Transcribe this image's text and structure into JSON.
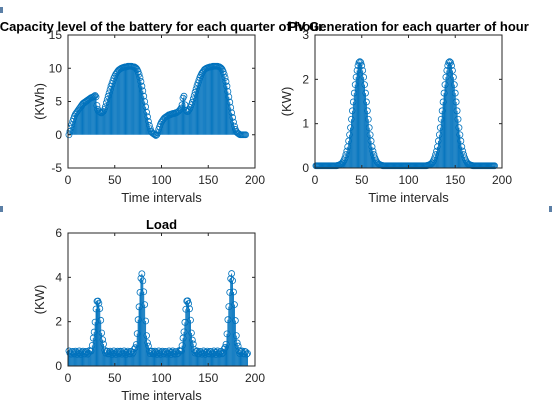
{
  "colors": {
    "series": "#0072BD",
    "axis": "#262626"
  },
  "chart_data": [
    {
      "type": "stem",
      "title": "Capacity level of the battery for each quarter of hour",
      "xlabel": "Time intervals",
      "ylabel": "(KWh)",
      "xlim": [
        0,
        200
      ],
      "ylim": [
        -5,
        15
      ],
      "xticks": [
        0,
        50,
        100,
        150,
        200
      ],
      "yticks": [
        -5,
        0,
        5,
        10,
        15
      ],
      "x_range": [
        1,
        192
      ],
      "y": [
        0,
        0.5,
        1,
        1.5,
        2,
        2.4,
        2.8,
        3.1,
        3.3,
        3.5,
        3.7,
        3.9,
        4.1,
        4.3,
        4.5,
        4.7,
        4.8,
        4.9,
        5,
        5.1,
        5.2,
        5.3,
        5.4,
        5.5,
        5.6,
        5.6,
        5.7,
        5.8,
        5.9,
        5.7,
        4.4,
        3.8,
        3.5,
        3.4,
        3.3,
        3.3,
        3.4,
        3.5,
        3.8,
        4.2,
        4.8,
        5.3,
        5.8,
        6.3,
        6.8,
        7.3,
        7.7,
        8.1,
        8.5,
        8.8,
        9.1,
        9.3,
        9.5,
        9.7,
        9.8,
        9.9,
        10,
        10.05,
        10.1,
        10.15,
        10.2,
        10.2,
        10.25,
        10.3,
        10.3,
        10.3,
        10.3,
        10.3,
        10.25,
        10.2,
        10.2,
        10.1,
        10,
        9.8,
        9.5,
        9.1,
        8.6,
        8,
        7.3,
        6.6,
        5.8,
        5,
        4.2,
        3.4,
        2.7,
        2,
        1.4,
        0.9,
        0.5,
        0.3,
        0.2,
        0.1,
        0,
        -0.1,
        0,
        0.3,
        0.8,
        1.2,
        1.6,
        1.9,
        2.1,
        2.3,
        2.5,
        2.6,
        2.7,
        2.8,
        2.9,
        3,
        3,
        3.1,
        3.1,
        3.2,
        3.2,
        3.2,
        3.3,
        3.3,
        3.4,
        3.5,
        3.6,
        3.8,
        4,
        4.5,
        5.5,
        5.8,
        4.5,
        3.7,
        3.5,
        3.5,
        3.6,
        3.8,
        4.1,
        4.5,
        4.9,
        5.4,
        5.9,
        6.4,
        6.9,
        7.4,
        7.8,
        8.2,
        8.6,
        8.9,
        9.2,
        9.4,
        9.6,
        9.8,
        9.9,
        10,
        10.05,
        10.1,
        10.15,
        10.2,
        10.2,
        10.25,
        10.3,
        10.3,
        10.3,
        10.3,
        10.3,
        10.3,
        10.25,
        10.2,
        10.1,
        10,
        9.8,
        9.5,
        9.1,
        8.6,
        8,
        7.3,
        6.5,
        5.7,
        4.9,
        4.1,
        3.3,
        2.6,
        1.9,
        1.3,
        0.8,
        0.5,
        0.3,
        0.2,
        0.1,
        0,
        0,
        0,
        0,
        0,
        0,
        0
      ]
    },
    {
      "type": "stem",
      "title": "PV Generation for each quarter of hour",
      "xlabel": "Time intervals",
      "ylabel": "(KW)",
      "xlim": [
        0,
        200
      ],
      "ylim": [
        0,
        3
      ],
      "xticks": [
        0,
        50,
        100,
        150,
        200
      ],
      "yticks": [
        0,
        1,
        2,
        3
      ],
      "x_range": [
        1,
        192
      ],
      "model": "two bell-shaped daily peaks, near zero elsewhere",
      "peaks": [
        {
          "x": 48,
          "y": 2.4
        },
        {
          "x": 144,
          "y": 2.4
        }
      ],
      "baseline": 0.05
    },
    {
      "type": "stem",
      "title": "Load",
      "xlabel": "Time intervals",
      "ylabel": "(KW)",
      "xlim": [
        0,
        200
      ],
      "ylim": [
        0,
        6
      ],
      "xticks": [
        0,
        50,
        100,
        150,
        200
      ],
      "yticks": [
        0,
        2,
        4,
        6
      ],
      "x_range": [
        1,
        192
      ],
      "model": "baseline load with four peaks",
      "baseline": 0.6,
      "start": 0.5,
      "peaks": [
        {
          "x": 32,
          "y": 3.0
        },
        {
          "x": 79,
          "y": 4.1
        },
        {
          "x": 128,
          "y": 3.0
        },
        {
          "x": 175,
          "y": 4.1
        }
      ]
    }
  ]
}
